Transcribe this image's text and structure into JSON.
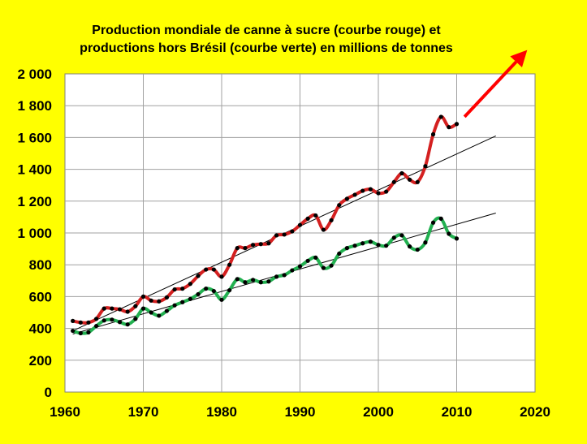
{
  "chart_data": {
    "type": "line",
    "title_lines": [
      "Production mondiale de canne à sucre (courbe rouge) et",
      "productions hors Brésil (courbe verte)   en millions de tonnes"
    ],
    "xlabel": "",
    "ylabel": "",
    "xlim": [
      1960,
      2020
    ],
    "ylim": [
      0,
      2000
    ],
    "x_ticks": [
      1960,
      1970,
      1980,
      1990,
      2000,
      2010,
      2020
    ],
    "y_ticks": [
      0,
      200,
      400,
      600,
      800,
      1000,
      1200,
      1400,
      1600,
      1800,
      2000
    ],
    "y_tick_labels": [
      "0",
      "200",
      "400",
      "600",
      "800",
      "1 000",
      "1 200",
      "1 400",
      "1 600",
      "1 800",
      "2 000"
    ],
    "grid": true,
    "legend": "none",
    "series": [
      {
        "color": "#d42020",
        "x": [
          1961,
          1962,
          1963,
          1964,
          1965,
          1966,
          1967,
          1968,
          1969,
          1970,
          1971,
          1972,
          1973,
          1974,
          1975,
          1976,
          1977,
          1978,
          1979,
          1980,
          1981,
          1982,
          1983,
          1984,
          1985,
          1986,
          1987,
          1988,
          1989,
          1990,
          1991,
          1992,
          1993,
          1994,
          1995,
          1996,
          1997,
          1998,
          1999,
          2000,
          2001,
          2002,
          2003,
          2004,
          2005,
          2006,
          2007,
          2008,
          2009,
          2010
        ],
        "values": [
          447,
          437,
          437,
          460,
          525,
          525,
          520,
          505,
          540,
          600,
          575,
          570,
          595,
          645,
          650,
          680,
          730,
          770,
          770,
          725,
          800,
          905,
          905,
          925,
          930,
          935,
          985,
          990,
          1010,
          1050,
          1090,
          1110,
          1020,
          1080,
          1175,
          1215,
          1240,
          1265,
          1275,
          1250,
          1260,
          1320,
          1375,
          1335,
          1320,
          1420,
          1620,
          1730,
          1665,
          1685
        ]
      },
      {
        "color": "#22b050",
        "x": [
          1961,
          1962,
          1963,
          1964,
          1965,
          1966,
          1967,
          1968,
          1969,
          1970,
          1971,
          1972,
          1973,
          1974,
          1975,
          1976,
          1977,
          1978,
          1979,
          1980,
          1981,
          1982,
          1983,
          1984,
          1985,
          1986,
          1987,
          1988,
          1989,
          1990,
          1991,
          1992,
          1993,
          1994,
          1995,
          1996,
          1997,
          1998,
          1999,
          2000,
          2001,
          2002,
          2003,
          2004,
          2005,
          2006,
          2007,
          2008,
          2009,
          2010
        ],
        "values": [
          385,
          370,
          375,
          415,
          450,
          455,
          440,
          425,
          460,
          525,
          500,
          480,
          510,
          545,
          565,
          585,
          615,
          650,
          635,
          580,
          640,
          710,
          690,
          705,
          690,
          695,
          725,
          735,
          765,
          790,
          825,
          845,
          780,
          795,
          870,
          905,
          920,
          935,
          945,
          925,
          920,
          970,
          985,
          915,
          895,
          940,
          1065,
          1090,
          995,
          965
        ]
      }
    ],
    "trendlines": [
      {
        "color": "#000000",
        "x": [
          1961,
          2015
        ],
        "values": [
          385,
          1610
        ]
      },
      {
        "color": "#000000",
        "x": [
          1961,
          2015
        ],
        "values": [
          365,
          1125
        ]
      }
    ],
    "arrow": {
      "color": "#ff0000",
      "from": [
        2011,
        1730
      ],
      "to": [
        2019,
        2150
      ]
    }
  }
}
